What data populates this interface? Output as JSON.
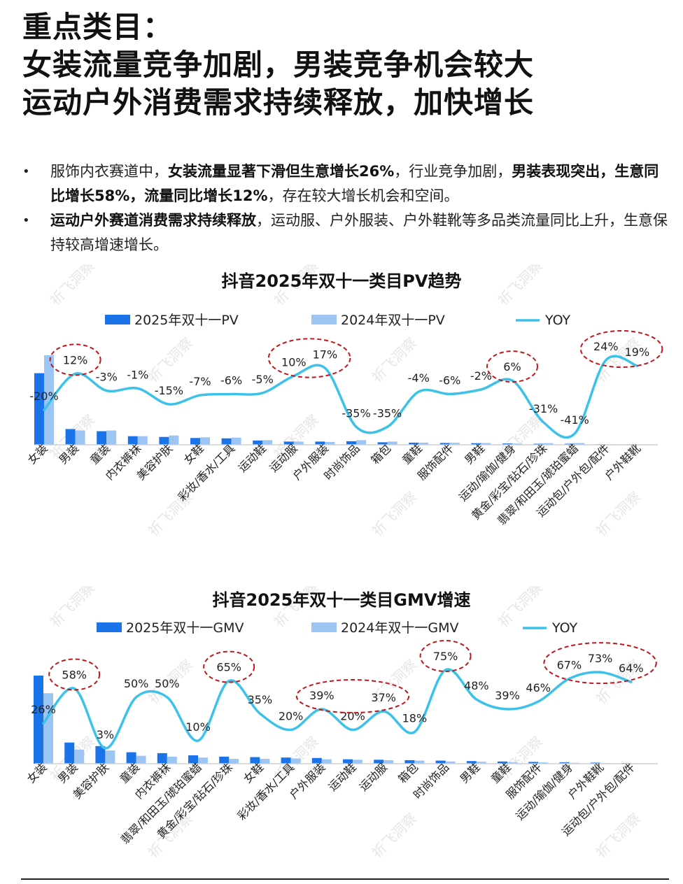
{
  "header": {
    "title_lines": [
      "重点类目：",
      "女装流量竞争加剧，男装竞争机会较大",
      "运动户外消费需求持续释放，加快增长"
    ]
  },
  "bullets": [
    {
      "segments": [
        {
          "text": "服饰内衣赛道中，",
          "bold": false
        },
        {
          "text": "女装流量显著下滑但生意增长26%",
          "bold": true
        },
        {
          "text": "，行业竞争加剧，",
          "bold": false
        },
        {
          "text": "男装表现突出，生意同比增长58%，流量同比增长12%",
          "bold": true
        },
        {
          "text": "，存在较大增长机会和空间。",
          "bold": false
        }
      ]
    },
    {
      "segments": [
        {
          "text": "运动户外赛道消费需求持续释放",
          "bold": true
        },
        {
          "text": "，运动服、户外服装、户外鞋靴等多品类流量同比上升，生意保持较高增速增长。",
          "bold": false
        }
      ]
    }
  ],
  "watermark": "祈飞洞察",
  "colors": {
    "bar_2025": "#1a73e8",
    "bar_2024": "#9cc5f4",
    "yoy_line": "#3cc2e8",
    "highlight_circle": "#c0161c"
  },
  "chart_data": [
    {
      "type": "bar",
      "title": "抖音2025年双十一类目PV趋势",
      "legend_placement": "top",
      "categories": [
        "女装",
        "男装",
        "童装",
        "内衣裤袜",
        "美容护肤",
        "女鞋",
        "彩妆/香水/工具",
        "运动鞋",
        "运动服",
        "户外服装",
        "时尚饰品",
        "箱包",
        "童鞋",
        "服饰配件",
        "男鞋",
        "运动/瑜伽/健身",
        "黄金/彩宝/钻石/珍珠",
        "翡翠/和田玉/琥珀蜜蜡",
        "运动包/户外包/配件",
        "户外鞋靴"
      ],
      "series": [
        {
          "name": "2025年双十一PV",
          "kind": "bar",
          "values": [
            100,
            22,
            19,
            12,
            11,
            9.5,
            9,
            6,
            4.5,
            4.5,
            5,
            3.5,
            3,
            2.5,
            2.2,
            1.8,
            1.5,
            1.5,
            0.8,
            0.7
          ]
        },
        {
          "name": "2024年双十一PV",
          "kind": "bar",
          "values": [
            125,
            20,
            20,
            12,
            13,
            10.5,
            10,
            6.5,
            4.5,
            4,
            6.5,
            4.5,
            3,
            2.8,
            2.5,
            1.7,
            2.2,
            2.5,
            0.6,
            0.5
          ]
        },
        {
          "name": "YOY",
          "kind": "line",
          "values": [
            -20,
            12,
            -3,
            -1,
            -15,
            -7,
            -6,
            -5,
            10,
            17,
            -35,
            -35,
            -4,
            -6,
            -2,
            6,
            -31,
            -41,
            24,
            19
          ]
        }
      ],
      "yoy_labels": [
        "-20%",
        "12%",
        "-3%",
        "-1%",
        "-15%",
        "-7%",
        "-6%",
        "-5%",
        "10%",
        "17%",
        "-35%",
        "-35%",
        "-4%",
        "-6%",
        "-2%",
        "6%",
        "-31%",
        "-41%",
        "24%",
        "19%"
      ],
      "highlight_groups": [
        [
          1
        ],
        [
          8,
          9
        ],
        [
          15
        ],
        [
          18,
          19
        ]
      ]
    },
    {
      "type": "bar",
      "title": "抖音2025年双十一类目GMV增速",
      "legend_placement": "top",
      "categories": [
        "女装",
        "男装",
        "美容护肤",
        "童装",
        "内衣裤袜",
        "翡翠/和田玉/琥珀蜜蜡",
        "黄金/彩宝/钻石/珍珠",
        "女鞋",
        "彩妆/香水/工具",
        "户外服装",
        "运动鞋",
        "运动服",
        "箱包",
        "时尚饰品",
        "男鞋",
        "童鞋",
        "服饰配件",
        "运动/瑜伽/健身",
        "户外鞋靴",
        "运动包/户外包/配件"
      ],
      "series": [
        {
          "name": "2025年双十一GMV",
          "kind": "bar",
          "values": [
            100,
            24,
            20,
            13,
            12,
            9.5,
            8,
            7.5,
            7,
            6.5,
            5,
            4.5,
            4,
            3.5,
            3,
            2.5,
            2,
            1.5,
            1.2,
            0.8
          ]
        },
        {
          "name": "2024年双十一GMV",
          "kind": "bar",
          "values": [
            80,
            16,
            15,
            9,
            8,
            7,
            5.5,
            5.5,
            6,
            5,
            4.5,
            4,
            3.5,
            2.5,
            2.2,
            1.8,
            1.5,
            1,
            0.7,
            0.5
          ]
        },
        {
          "name": "YOY",
          "kind": "line",
          "values": [
            26,
            58,
            3,
            50,
            50,
            10,
            65,
            35,
            20,
            39,
            20,
            37,
            18,
            75,
            48,
            39,
            46,
            67,
            73,
            64
          ]
        }
      ],
      "yoy_labels": [
        "26%",
        "58%",
        "3%",
        "50%",
        "50%",
        "10%",
        "65%",
        "35%",
        "20%",
        "39%",
        "20%",
        "37%",
        "18%",
        "75%",
        "48%",
        "39%",
        "46%",
        "67%",
        "73%",
        "64%"
      ],
      "highlight_groups": [
        [
          1
        ],
        [
          6
        ],
        [
          9,
          11
        ],
        [
          13
        ],
        [
          17,
          18,
          19
        ]
      ]
    }
  ]
}
